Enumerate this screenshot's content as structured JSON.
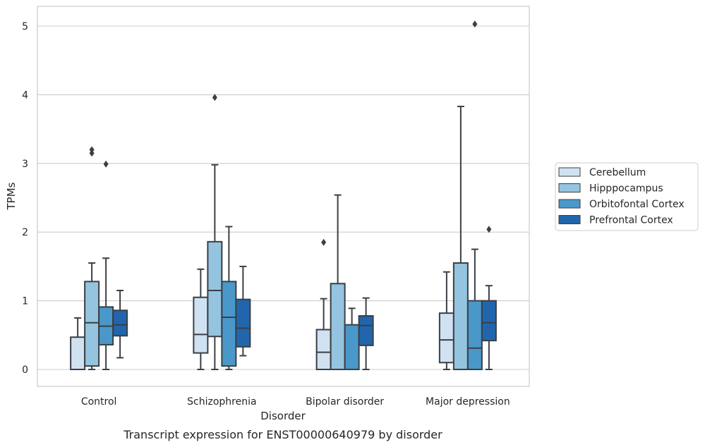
{
  "chart_data": {
    "type": "box",
    "xlabel": "Disorder",
    "ylabel": "TPMs",
    "caption": "Transcript expression for ENST00000640979 by disorder",
    "ylim": [
      -0.25,
      5.3
    ],
    "yticks": [
      0,
      1,
      2,
      3,
      4,
      5
    ],
    "grid": "horizontal",
    "legend_position": "right",
    "categories": [
      "Control",
      "Schizophrenia",
      "Bipolar disorder",
      "Major depression"
    ],
    "series": [
      {
        "name": "Cerebellum",
        "color": "#d0e1f2",
        "boxes": [
          {
            "whisker_low": 0,
            "q1": 0,
            "median": 0,
            "q3": 0.47,
            "whisker_high": 0.75,
            "outliers": []
          },
          {
            "whisker_low": 0,
            "q1": 0.24,
            "median": 0.51,
            "q3": 1.05,
            "whisker_high": 1.46,
            "outliers": []
          },
          {
            "whisker_low": 0,
            "q1": 0,
            "median": 0.25,
            "q3": 0.58,
            "whisker_high": 1.03,
            "outliers": [
              1.85
            ]
          },
          {
            "whisker_low": 0,
            "q1": 0.1,
            "median": 0.43,
            "q3": 0.82,
            "whisker_high": 1.42,
            "outliers": []
          }
        ]
      },
      {
        "name": "Hipppocampus",
        "color": "#94c4df",
        "boxes": [
          {
            "whisker_low": 0,
            "q1": 0.05,
            "median": 0.68,
            "q3": 1.28,
            "whisker_high": 1.55,
            "outliers": [
              3.15,
              3.2
            ]
          },
          {
            "whisker_low": 0,
            "q1": 0.48,
            "median": 1.15,
            "q3": 1.86,
            "whisker_high": 2.98,
            "outliers": [
              3.96
            ]
          },
          {
            "whisker_low": 0,
            "q1": 0,
            "median": 0,
            "q3": 1.25,
            "whisker_high": 2.54,
            "outliers": []
          },
          {
            "whisker_low": 0,
            "q1": 0,
            "median": 0,
            "q3": 1.55,
            "whisker_high": 3.83,
            "outliers": []
          }
        ]
      },
      {
        "name": "Orbitofontal Cortex",
        "color": "#4a98c9",
        "boxes": [
          {
            "whisker_low": 0,
            "q1": 0.36,
            "median": 0.63,
            "q3": 0.91,
            "whisker_high": 1.62,
            "outliers": [
              2.99
            ]
          },
          {
            "whisker_low": 0,
            "q1": 0.05,
            "median": 0.76,
            "q3": 1.28,
            "whisker_high": 2.08,
            "outliers": []
          },
          {
            "whisker_low": 0,
            "q1": 0,
            "median": 0,
            "q3": 0.65,
            "whisker_high": 0.89,
            "outliers": []
          },
          {
            "whisker_low": 0,
            "q1": 0,
            "median": 0.31,
            "q3": 1.0,
            "whisker_high": 1.75,
            "outliers": [
              5.03
            ]
          }
        ]
      },
      {
        "name": "Prefrontal Cortex",
        "color": "#2166ac",
        "boxes": [
          {
            "whisker_low": 0.17,
            "q1": 0.49,
            "median": 0.65,
            "q3": 0.86,
            "whisker_high": 1.15,
            "outliers": []
          },
          {
            "whisker_low": 0.2,
            "q1": 0.33,
            "median": 0.6,
            "q3": 1.02,
            "whisker_high": 1.5,
            "outliers": []
          },
          {
            "whisker_low": 0,
            "q1": 0.35,
            "median": 0.64,
            "q3": 0.78,
            "whisker_high": 1.04,
            "outliers": []
          },
          {
            "whisker_low": 0,
            "q1": 0.42,
            "median": 0.68,
            "q3": 1.0,
            "whisker_high": 1.22,
            "outliers": [
              2.04
            ]
          }
        ]
      }
    ]
  }
}
